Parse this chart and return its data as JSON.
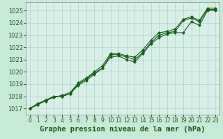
{
  "background_color": "#c8e8d8",
  "plot_bg_color": "#d8eee8",
  "grid_color": "#b0d8c8",
  "line_color": "#1a5c1a",
  "marker_color": "#1a5c1a",
  "xlabel": "Graphe pression niveau de la mer (hPa)",
  "xlabel_fontsize": 7.5,
  "tick_fontsize": 5.5,
  "ytick_fontsize": 6.0,
  "xlim": [
    -0.5,
    23.5
  ],
  "ylim": [
    1016.5,
    1025.7
  ],
  "yticks": [
    1017,
    1018,
    1019,
    1020,
    1021,
    1022,
    1023,
    1024,
    1025
  ],
  "xticks": [
    0,
    1,
    2,
    3,
    4,
    5,
    6,
    7,
    8,
    9,
    10,
    11,
    12,
    13,
    14,
    15,
    16,
    17,
    18,
    19,
    20,
    21,
    22,
    23
  ],
  "series": [
    [
      1017.0,
      1017.4,
      1017.7,
      1018.0,
      1018.0,
      1018.2,
      1018.9,
      1019.3,
      1019.8,
      1020.3,
      1021.2,
      1021.3,
      1021.0,
      1020.8,
      1021.5,
      1022.3,
      1022.8,
      1023.1,
      1023.2,
      1023.2,
      1024.1,
      1023.8,
      1025.0,
      1025.0
    ],
    [
      1017.0,
      1017.4,
      1017.6,
      1018.0,
      1018.0,
      1018.2,
      1019.0,
      1019.4,
      1019.9,
      1020.3,
      1021.4,
      1021.4,
      1021.2,
      1021.0,
      1021.6,
      1022.4,
      1023.0,
      1023.2,
      1023.3,
      1024.2,
      1024.4,
      1024.1,
      1025.1,
      1025.1
    ],
    [
      1017.0,
      1017.3,
      1017.7,
      1017.9,
      1018.1,
      1018.3,
      1019.1,
      1019.5,
      1020.0,
      1020.5,
      1021.5,
      1021.5,
      1021.3,
      1021.2,
      1021.8,
      1022.6,
      1023.2,
      1023.3,
      1023.5,
      1024.3,
      1024.5,
      1024.2,
      1025.2,
      1025.2
    ]
  ]
}
